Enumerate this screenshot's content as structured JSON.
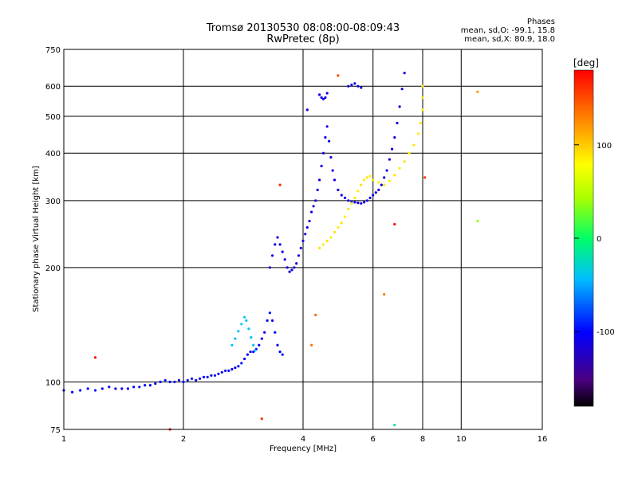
{
  "header": {
    "title_line1": "Tromsø 20130530 08:08:00-08:09:43",
    "title_line2": "RwPretec (8p)"
  },
  "phase_legend": {
    "heading": "Phases",
    "line_o": "mean, sd,O: -99.1, 15.8",
    "line_x": "mean, sd,X:  80.9, 18.0"
  },
  "colorbar": {
    "label": "[deg]",
    "ticks": [
      "100",
      "0",
      "-100"
    ],
    "tick_values": [
      100,
      0,
      -100
    ],
    "range": [
      -180,
      180
    ]
  },
  "chart_data": {
    "type": "scatter",
    "xlabel": "Frequency [MHz]",
    "ylabel": "Stationary phase Virtual Height [km]",
    "xscale": "log",
    "yscale": "log",
    "xlim": [
      1,
      16
    ],
    "ylim": [
      75,
      750
    ],
    "x_ticks": [
      1,
      2,
      4,
      6,
      8,
      10,
      16
    ],
    "x_tick_labels": [
      "1",
      "2",
      "4",
      "6",
      "8",
      "10",
      "16"
    ],
    "y_ticks": [
      75,
      100,
      200,
      300,
      400,
      500,
      600,
      750
    ],
    "y_tick_labels": [
      "75",
      "100",
      "200",
      "300",
      "400",
      "500",
      "600",
      "750"
    ],
    "grid": true,
    "series": [
      {
        "points": [
          [
            1.0,
            95,
            -105
          ],
          [
            1.05,
            94,
            -100
          ],
          [
            1.1,
            95,
            -110
          ],
          [
            1.15,
            96,
            -100
          ],
          [
            1.2,
            95,
            -95
          ],
          [
            1.25,
            96,
            -105
          ],
          [
            1.3,
            97,
            -100
          ],
          [
            1.35,
            96,
            -110
          ],
          [
            1.4,
            96,
            -100
          ],
          [
            1.45,
            96,
            -105
          ],
          [
            1.5,
            97,
            -100
          ],
          [
            1.55,
            97,
            -95
          ],
          [
            1.6,
            98,
            -105
          ],
          [
            1.65,
            98,
            -100
          ],
          [
            1.7,
            99,
            -110
          ],
          [
            1.75,
            100,
            -100
          ],
          [
            1.8,
            101,
            -95
          ],
          [
            1.85,
            100,
            -105
          ],
          [
            1.9,
            100,
            -100
          ],
          [
            1.95,
            101,
            -110
          ],
          [
            2.0,
            100,
            -100
          ],
          [
            2.05,
            101,
            -95
          ],
          [
            2.1,
            102,
            -105
          ],
          [
            2.15,
            101,
            -100
          ],
          [
            2.2,
            102,
            -110
          ],
          [
            2.25,
            103,
            -100
          ],
          [
            2.3,
            103,
            -95
          ],
          [
            2.35,
            104,
            -105
          ],
          [
            2.4,
            104,
            -100
          ],
          [
            2.45,
            105,
            -110
          ],
          [
            2.5,
            106,
            -100
          ],
          [
            2.55,
            107,
            -95
          ],
          [
            2.6,
            107,
            -105
          ],
          [
            2.65,
            108,
            -100
          ],
          [
            2.7,
            109,
            -110
          ],
          [
            2.75,
            110,
            -100
          ],
          [
            2.8,
            112,
            -95
          ],
          [
            2.85,
            115,
            -105
          ],
          [
            2.9,
            118,
            -100
          ],
          [
            2.95,
            120,
            -110
          ],
          [
            3.0,
            120,
            -100
          ],
          [
            3.05,
            122,
            -95
          ],
          [
            3.1,
            125,
            -105
          ],
          [
            3.15,
            130,
            -100
          ],
          [
            3.2,
            135,
            -110
          ],
          [
            3.25,
            145,
            -100
          ],
          [
            3.3,
            152,
            -95
          ],
          [
            3.35,
            145,
            -105
          ],
          [
            3.4,
            135,
            -100
          ],
          [
            3.45,
            125,
            -110
          ],
          [
            3.5,
            120,
            -100
          ],
          [
            3.55,
            118,
            -95
          ],
          [
            2.65,
            125,
            -40
          ],
          [
            2.7,
            130,
            -40
          ],
          [
            2.75,
            136,
            -40
          ],
          [
            2.8,
            142,
            -40
          ],
          [
            2.85,
            148,
            -35
          ],
          [
            2.88,
            145,
            -40
          ],
          [
            2.92,
            138,
            -40
          ],
          [
            2.96,
            131,
            -40
          ],
          [
            3.0,
            125,
            -45
          ],
          [
            3.03,
            121,
            -40
          ],
          [
            3.3,
            200,
            -115
          ],
          [
            3.35,
            215,
            -110
          ],
          [
            3.4,
            230,
            -115
          ],
          [
            3.45,
            240,
            -110
          ],
          [
            3.5,
            230,
            -115
          ],
          [
            3.55,
            220,
            -110
          ],
          [
            3.6,
            210,
            -115
          ],
          [
            3.65,
            200,
            -110
          ],
          [
            3.7,
            195,
            -115
          ],
          [
            3.75,
            197,
            -110
          ],
          [
            3.8,
            200,
            -115
          ],
          [
            3.85,
            205,
            -110
          ],
          [
            3.9,
            215,
            -115
          ],
          [
            3.95,
            225,
            -110
          ],
          [
            4.0,
            235,
            -115
          ],
          [
            4.05,
            245,
            -110
          ],
          [
            4.1,
            255,
            -115
          ],
          [
            4.15,
            265,
            -110
          ],
          [
            4.2,
            280,
            -115
          ],
          [
            4.25,
            290,
            -110
          ],
          [
            4.3,
            300,
            -115
          ],
          [
            4.35,
            320,
            -110
          ],
          [
            4.4,
            340,
            -115
          ],
          [
            4.45,
            370,
            -110
          ],
          [
            4.5,
            400,
            -115
          ],
          [
            4.55,
            440,
            -110
          ],
          [
            4.6,
            470,
            -115
          ],
          [
            4.65,
            430,
            -110
          ],
          [
            4.7,
            390,
            -115
          ],
          [
            4.75,
            360,
            -110
          ],
          [
            4.8,
            340,
            -115
          ],
          [
            4.9,
            320,
            -110
          ],
          [
            5.0,
            310,
            -115
          ],
          [
            5.1,
            305,
            -110
          ],
          [
            5.2,
            300,
            -115
          ],
          [
            5.3,
            298,
            -110
          ],
          [
            5.4,
            297,
            -115
          ],
          [
            5.5,
            296,
            -110
          ],
          [
            5.6,
            295,
            -115
          ],
          [
            5.7,
            297,
            -110
          ],
          [
            5.8,
            300,
            -115
          ],
          [
            5.9,
            305,
            -110
          ],
          [
            6.0,
            310,
            -115
          ],
          [
            6.1,
            315,
            -110
          ],
          [
            6.2,
            320,
            -115
          ],
          [
            6.3,
            330,
            -110
          ],
          [
            6.4,
            345,
            -115
          ],
          [
            6.5,
            360,
            -110
          ],
          [
            6.6,
            385,
            -115
          ],
          [
            6.7,
            410,
            -110
          ],
          [
            6.8,
            440,
            -115
          ],
          [
            6.9,
            480,
            -110
          ],
          [
            7.0,
            530,
            -115
          ],
          [
            7.1,
            590,
            -110
          ],
          [
            7.2,
            650,
            -115
          ],
          [
            4.4,
            570,
            -110
          ],
          [
            4.45,
            560,
            -115
          ],
          [
            4.5,
            555,
            -110
          ],
          [
            4.55,
            560,
            -115
          ],
          [
            4.6,
            575,
            -110
          ],
          [
            5.2,
            600,
            -110
          ],
          [
            5.3,
            605,
            -115
          ],
          [
            5.4,
            610,
            -110
          ],
          [
            5.5,
            600,
            -115
          ],
          [
            5.6,
            595,
            -110
          ],
          [
            4.1,
            520,
            -110
          ],
          [
            4.4,
            225,
            90
          ],
          [
            4.5,
            230,
            85
          ],
          [
            4.6,
            235,
            90
          ],
          [
            4.7,
            240,
            85
          ],
          [
            4.8,
            248,
            90
          ],
          [
            4.9,
            255,
            85
          ],
          [
            5.0,
            262,
            90
          ],
          [
            5.1,
            272,
            85
          ],
          [
            5.2,
            285,
            90
          ],
          [
            5.3,
            295,
            85
          ],
          [
            5.4,
            305,
            90
          ],
          [
            5.5,
            318,
            85
          ],
          [
            5.6,
            330,
            90
          ],
          [
            5.7,
            340,
            85
          ],
          [
            5.8,
            345,
            90
          ],
          [
            5.9,
            348,
            85
          ],
          [
            6.0,
            340,
            90
          ],
          [
            6.2,
            335,
            85
          ],
          [
            6.4,
            330,
            90
          ],
          [
            6.6,
            338,
            85
          ],
          [
            6.8,
            350,
            90
          ],
          [
            7.0,
            365,
            85
          ],
          [
            7.2,
            380,
            90
          ],
          [
            7.4,
            400,
            85
          ],
          [
            7.6,
            420,
            90
          ],
          [
            7.8,
            450,
            85
          ],
          [
            7.9,
            480,
            90
          ],
          [
            8.0,
            520,
            85
          ],
          [
            8.0,
            560,
            90
          ],
          [
            8.0,
            600,
            85
          ],
          [
            1.2,
            116,
            175
          ],
          [
            1.85,
            75,
            175
          ],
          [
            3.5,
            330,
            165
          ],
          [
            3.15,
            80,
            160
          ],
          [
            4.9,
            640,
            150
          ],
          [
            8.1,
            345,
            155
          ],
          [
            6.8,
            260,
            175
          ],
          [
            11.0,
            580,
            120
          ],
          [
            11.0,
            265,
            40
          ],
          [
            6.8,
            77,
            -20
          ],
          [
            4.3,
            150,
            140
          ],
          [
            4.2,
            125,
            135
          ],
          [
            6.4,
            170,
            130
          ]
        ]
      }
    ]
  }
}
